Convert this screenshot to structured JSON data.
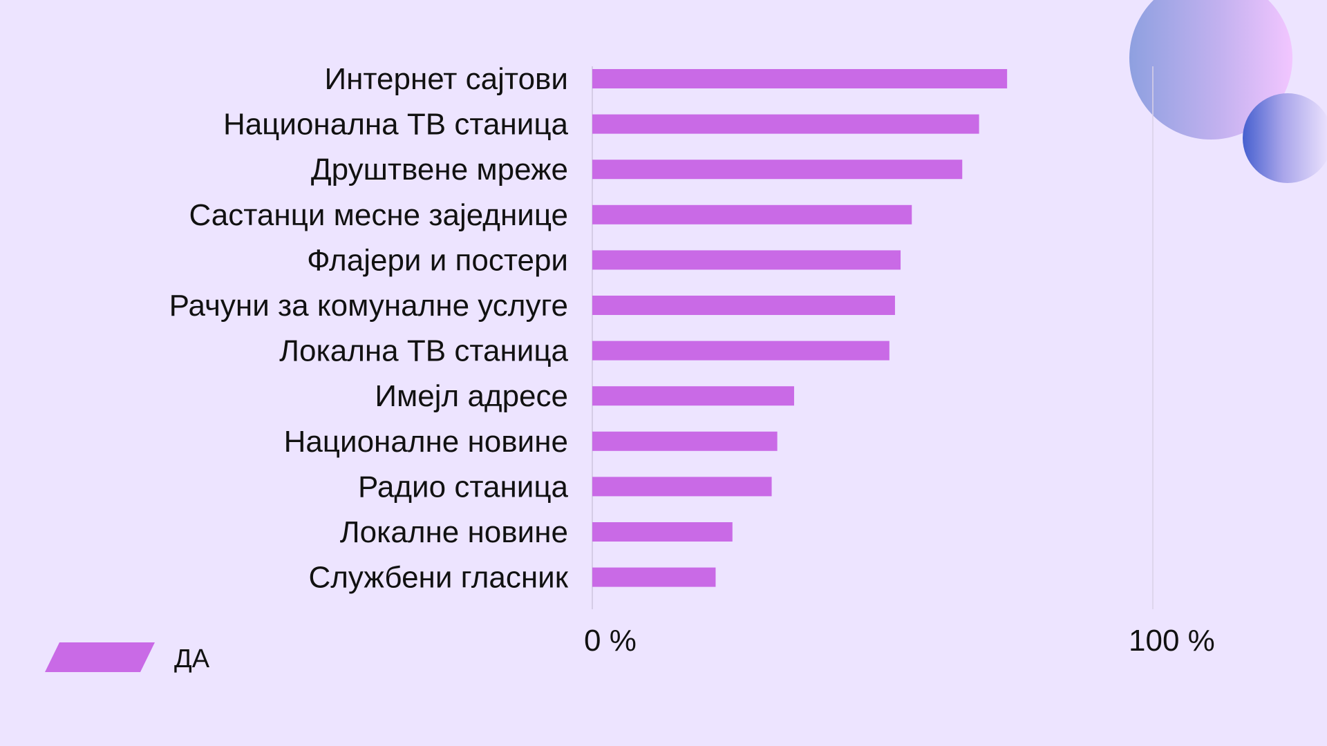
{
  "chart_data": {
    "type": "bar",
    "orientation": "horizontal",
    "categories": [
      "Интернет сајтови",
      "Национална ТВ станица",
      "Друштвене мреже",
      "Састанци месне заједнице",
      "Флајери и постери",
      "Рачуни за комуналне услуге",
      "Локална ТВ станица",
      "Имејл адресе",
      "Националне новине",
      "Радио станица",
      "Локалне новине",
      "Службени гласник"
    ],
    "series": [
      {
        "name": "ДА",
        "color": "#c96ae6",
        "values": [
          74,
          69,
          66,
          57,
          55,
          54,
          53,
          36,
          33,
          32,
          25,
          22
        ]
      }
    ],
    "xlim": [
      0,
      100
    ],
    "tick_labels": [
      "0 %",
      "100 %"
    ],
    "legend_position": "bottom-left",
    "grid": false
  },
  "colors": {
    "background": "#ede4ff",
    "bar": "#c96ae6",
    "axis_line": "#cdc3dd"
  }
}
